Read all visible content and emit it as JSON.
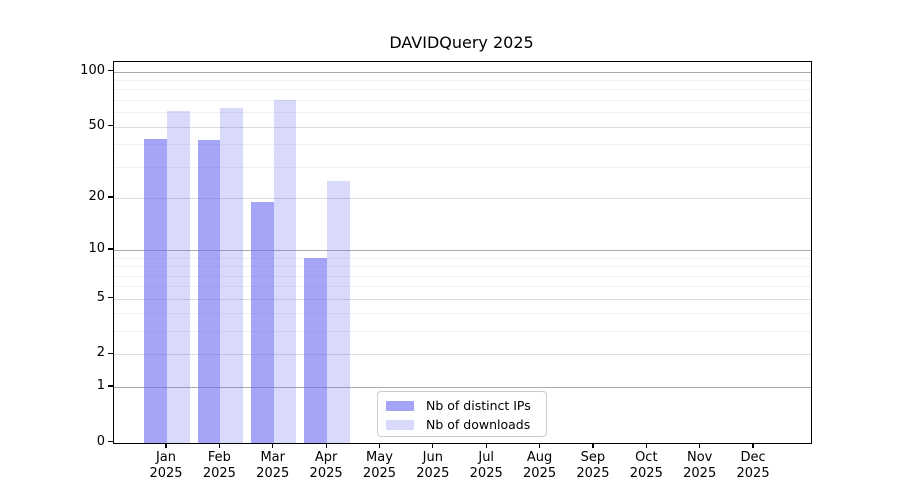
{
  "background_color": "#ffffff",
  "chart_data": {
    "type": "bar",
    "title": "DAVIDQuery 2025",
    "categories": [
      {
        "month": "Jan",
        "year": "2025"
      },
      {
        "month": "Feb",
        "year": "2025"
      },
      {
        "month": "Mar",
        "year": "2025"
      },
      {
        "month": "Apr",
        "year": "2025"
      },
      {
        "month": "May",
        "year": "2025"
      },
      {
        "month": "Jun",
        "year": "2025"
      },
      {
        "month": "Jul",
        "year": "2025"
      },
      {
        "month": "Aug",
        "year": "2025"
      },
      {
        "month": "Sep",
        "year": "2025"
      },
      {
        "month": "Oct",
        "year": "2025"
      },
      {
        "month": "Nov",
        "year": "2025"
      },
      {
        "month": "Dec",
        "year": "2025"
      }
    ],
    "series": [
      {
        "name": "Nb of distinct IPs",
        "color": "rgba(105,105,242,0.60)",
        "values": [
          43,
          42,
          19,
          9,
          0,
          0,
          0,
          0,
          0,
          0,
          0,
          0
        ]
      },
      {
        "name": "Nb of downloads",
        "color": "rgba(105,105,242,0.25)",
        "values": [
          61,
          63,
          70,
          25,
          0,
          0,
          0,
          0,
          0,
          0,
          0,
          0
        ]
      }
    ],
    "y_axis": {
      "scale": "log1p",
      "ticks": [
        0,
        1,
        2,
        5,
        10,
        20,
        50,
        100
      ],
      "minor_ticks": [
        3,
        4,
        6,
        7,
        8,
        9,
        30,
        40,
        60,
        70,
        80,
        90
      ],
      "max": 113
    },
    "x_axis": {
      "label": "",
      "tick_style": "month over year, two lines"
    },
    "grid": {
      "enabled": true,
      "decade_line_color": "#ababab",
      "major_line_color": "#dcdcdc",
      "minor_line_color": "#f0f0f0"
    },
    "legend": {
      "position": "lower center",
      "border_color": "#cccccc"
    }
  }
}
